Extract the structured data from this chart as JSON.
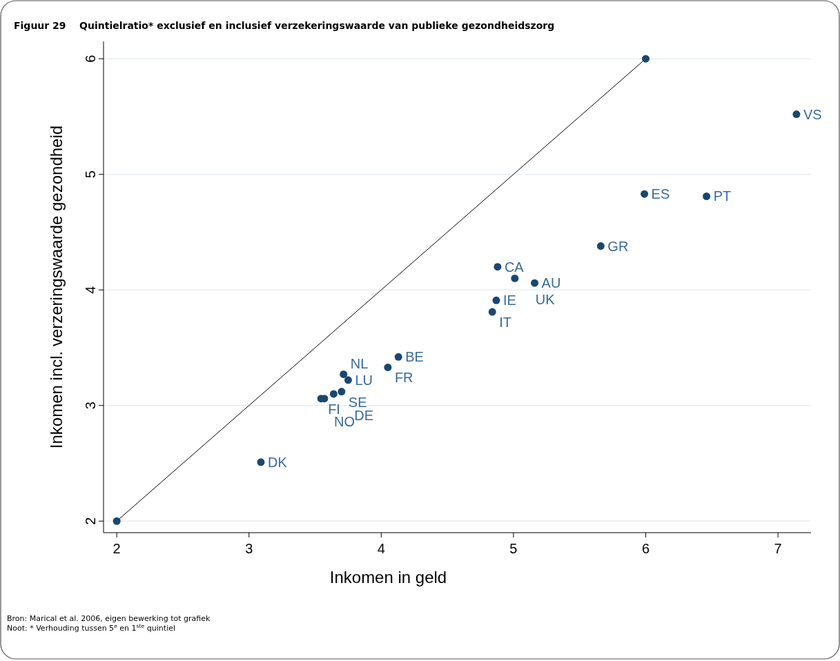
{
  "chart_data": {
    "type": "scatter",
    "title": "Figuur 29    Quintielratio* exclusief en inclusief verzekeringswaarde van publieke gezondheidszorg",
    "xlabel": "Inkomen in geld",
    "ylabel": "Inkomen incl. verzeringswaarde gezondheid",
    "xlim": [
      1.9,
      7.25
    ],
    "ylim": [
      1.9,
      6.15
    ],
    "xticks": [
      2,
      3,
      4,
      5,
      6,
      7
    ],
    "yticks": [
      2,
      3,
      4,
      5,
      6
    ],
    "grid": "y",
    "series": [
      {
        "type": "line",
        "color": "#000000",
        "x": [
          2,
          6
        ],
        "values": [
          2,
          6
        ],
        "marker": "circle",
        "line_style": "solid"
      },
      {
        "color": "#1a476f",
        "marker": "circle",
        "x": [
          3.09,
          3.715,
          3.75,
          3.7,
          3.64,
          3.545,
          3.57,
          4.05,
          4.13,
          4.84,
          4.87,
          4.88,
          5.01,
          5.16,
          5.66,
          5.99,
          6.46,
          7.14
        ],
        "values": [
          2.51,
          3.27,
          3.22,
          3.12,
          3.1,
          3.06,
          3.06,
          3.33,
          3.42,
          3.81,
          3.91,
          4.2,
          4.1,
          4.06,
          4.38,
          4.83,
          4.81,
          5.52
        ],
        "value_labels": [
          "DK",
          "NL",
          "LU",
          "SE",
          "DE",
          "FI",
          "NO",
          "FR",
          "BE",
          "IT",
          "IE",
          "CA",
          "UK",
          "AU",
          "GR",
          "ES",
          "PT",
          "VS"
        ]
      }
    ],
    "annotations": [
      "Bron: Marical et al. 2006, eigen bewerking tot grafiek",
      "Noot: * Verhouding tussen 5$^{e}$ en 1$^{ste}$ quintiel"
    ]
  }
}
